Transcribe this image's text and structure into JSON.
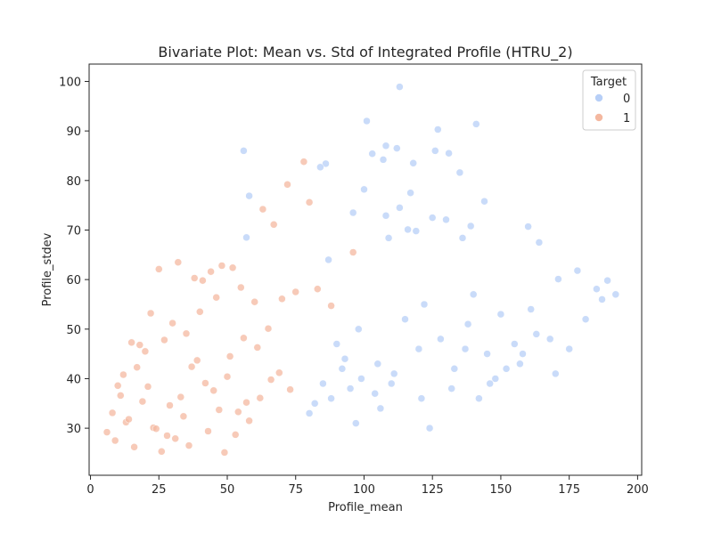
{
  "chart_data": {
    "type": "scatter",
    "title": "Bivariate Plot: Mean vs. Std of Integrated Profile (HTRU_2)",
    "xlabel": "Profile_mean",
    "ylabel": "Profile_stdev",
    "xlim": [
      -0.5,
      201.5
    ],
    "ylim": [
      20.5,
      103.5
    ],
    "xticks": [
      0,
      25,
      50,
      75,
      100,
      125,
      150,
      175,
      200
    ],
    "yticks": [
      30,
      40,
      50,
      60,
      70,
      80,
      90,
      100
    ],
    "grid": false,
    "legend": {
      "title": "Target",
      "placement": "top-right",
      "entries": [
        {
          "label": "0",
          "color": "#b7cff7"
        },
        {
          "label": "1",
          "color": "#f4b8a0"
        }
      ]
    },
    "series": [
      {
        "label": "0",
        "color": "#b7cff7",
        "x": [
          113,
          101,
          141,
          127,
          108,
          112,
          56,
          103,
          107,
          118,
          135,
          131,
          126,
          86,
          84,
          100,
          58,
          144,
          117,
          96,
          125,
          113,
          108,
          116,
          109,
          130,
          119,
          139,
          160,
          136,
          87,
          57,
          164,
          178,
          189,
          185,
          192,
          171,
          161,
          90,
          98,
          105,
          115,
          120,
          110,
          122,
          128,
          133,
          138,
          145,
          150,
          155,
          148,
          140,
          95,
          92,
          88,
          80,
          82,
          85,
          93,
          97,
          104,
          111,
          124,
          132,
          142,
          152,
          158,
          168,
          175,
          181,
          187,
          170,
          163,
          157,
          146,
          137,
          121,
          106,
          99
        ],
        "y": [
          98.9,
          92,
          91.4,
          90.3,
          87,
          86.5,
          86,
          85.4,
          84.2,
          83.5,
          81.6,
          85.5,
          86,
          83.4,
          82.7,
          78.2,
          76.9,
          75.8,
          77.5,
          73.5,
          72.5,
          74.5,
          72.9,
          70.1,
          68.4,
          72.1,
          69.8,
          70.8,
          70.7,
          68.4,
          64,
          68.5,
          67.5,
          61.8,
          59.8,
          58.1,
          57,
          60.1,
          54,
          47,
          50,
          43,
          52,
          46,
          39,
          55,
          48,
          42,
          51,
          45,
          53,
          47,
          40,
          57,
          38,
          42,
          36,
          33,
          35,
          39,
          44,
          31,
          37,
          41,
          30,
          38,
          36,
          42,
          45,
          48,
          46,
          52,
          56,
          41,
          49,
          43,
          39,
          46,
          36,
          34,
          40
        ]
      },
      {
        "label": "1",
        "color": "#f4b8a0",
        "x": [
          78,
          72,
          80,
          63,
          67,
          52,
          48,
          32,
          25,
          44,
          38,
          41,
          55,
          60,
          70,
          75,
          83,
          88,
          96,
          46,
          40,
          35,
          30,
          27,
          22,
          20,
          18,
          15,
          12,
          10,
          8,
          6,
          9,
          13,
          16,
          19,
          23,
          28,
          33,
          37,
          42,
          47,
          51,
          56,
          61,
          65,
          69,
          73,
          34,
          29,
          24,
          21,
          17,
          14,
          11,
          26,
          31,
          36,
          43,
          49,
          54,
          58,
          62,
          66,
          53,
          45,
          39,
          50,
          57
        ],
        "y": [
          83.8,
          79.2,
          75.6,
          74.2,
          71.1,
          62.4,
          62.8,
          63.5,
          62.1,
          61.6,
          60.3,
          59.8,
          58.4,
          55.5,
          56.1,
          57.5,
          58.1,
          54.7,
          65.5,
          56.4,
          53.5,
          49.1,
          51.2,
          47.8,
          53.2,
          45.5,
          46.8,
          47.3,
          40.8,
          38.6,
          33.1,
          29.2,
          27.5,
          31.2,
          26.2,
          35.4,
          30.1,
          28.5,
          36.3,
          42.4,
          39.1,
          33.7,
          44.5,
          48.2,
          46.3,
          50.1,
          41.2,
          37.8,
          32.4,
          34.6,
          29.9,
          38.4,
          42.3,
          31.8,
          36.6,
          25.3,
          27.9,
          26.5,
          29.4,
          25.1,
          33.3,
          31.5,
          36.1,
          39.8,
          28.7,
          37.6,
          43.7,
          40.4,
          35.2
        ]
      }
    ]
  }
}
